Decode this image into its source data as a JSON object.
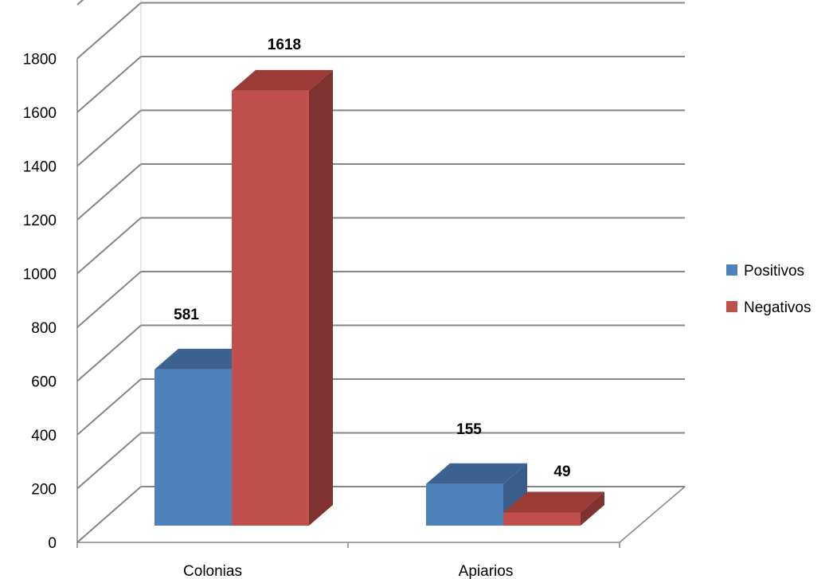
{
  "chart_data": {
    "type": "bar",
    "style": "3d-clustered-column",
    "categories": [
      "Colonias",
      "Apiarios"
    ],
    "series": [
      {
        "name": "Positivos",
        "values": [
          581,
          155
        ],
        "color": "#4F81BD",
        "top_color": "#3C6291",
        "side_color": "#385D8A"
      },
      {
        "name": "Negativos",
        "values": [
          1618,
          49
        ],
        "color": "#C0504D",
        "top_color": "#9A3B38",
        "side_color": "#7F3230"
      }
    ],
    "data_labels": [
      "581",
      "155",
      "1618",
      "49"
    ],
    "title": "",
    "xlabel": "",
    "ylabel": "",
    "ylim": [
      0,
      1800
    ],
    "yticks": [
      "0",
      "200",
      "400",
      "600",
      "800",
      "1000",
      "1200",
      "1400",
      "1600",
      "1800"
    ],
    "grid": true,
    "legend_position": "right"
  }
}
